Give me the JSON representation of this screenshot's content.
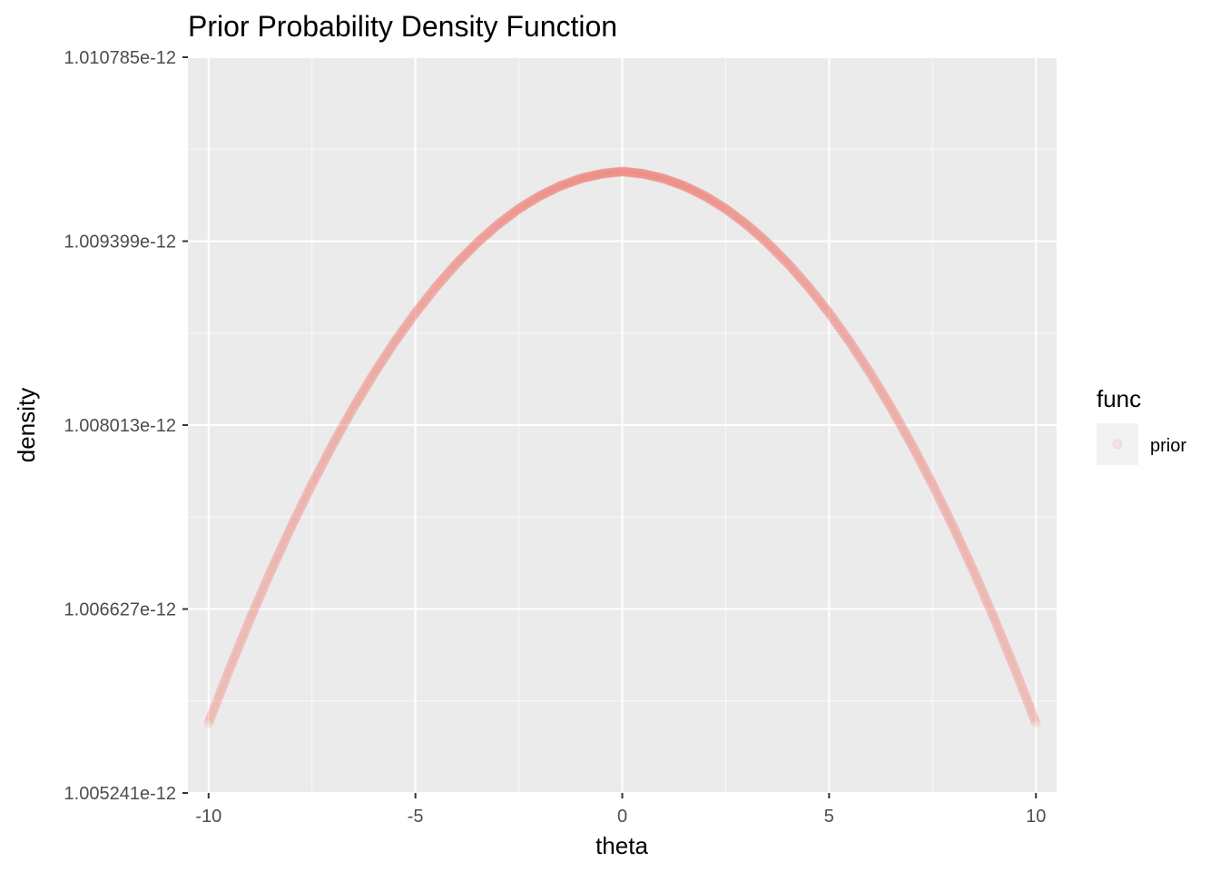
{
  "chart_data": {
    "type": "scatter",
    "title": "Prior Probability Density Function",
    "xlabel": "theta",
    "ylabel": "density",
    "xlim": [
      -10.5,
      10.5
    ],
    "ylim": [
      1.005241e-12,
      1.010785e-12
    ],
    "x_ticks": [
      -10,
      -5,
      0,
      5,
      10
    ],
    "x_tick_labels": [
      "-10",
      "-5",
      "0",
      "5",
      "10"
    ],
    "y_ticks": [
      1.005241e-12,
      1.006627e-12,
      1.008013e-12,
      1.009399e-12,
      1.010785e-12
    ],
    "y_tick_labels": [
      "1.005241e-12",
      "1.006627e-12",
      "1.008013e-12",
      "1.009399e-12",
      "1.010785e-12"
    ],
    "grid": true,
    "legend": {
      "title": "func",
      "position": "right",
      "entries": [
        "prior"
      ]
    },
    "series": [
      {
        "name": "prior",
        "color": "#F8766D",
        "x": [
          -10,
          -9.5,
          -9,
          -8.5,
          -8,
          -7.5,
          -7,
          -6.5,
          -6,
          -5.5,
          -5,
          -4.5,
          -4,
          -3.5,
          -3,
          -2.5,
          -2,
          -1.5,
          -1,
          -0.5,
          0,
          0.5,
          1,
          1.5,
          2,
          2.5,
          3,
          3.5,
          4,
          4.5,
          5,
          5.5,
          6,
          6.5,
          7,
          7.5,
          8,
          8.5,
          9,
          9.5,
          10
        ],
        "y": [
          1.005769e-12,
          1.006169e-12,
          1.006549e-12,
          1.006909e-12,
          1.007248e-12,
          1.007567e-12,
          1.007865e-12,
          1.008144e-12,
          1.008402e-12,
          1.00864e-12,
          1.008858e-12,
          1.009055e-12,
          1.009232e-12,
          1.009389e-12,
          1.009526e-12,
          1.009643e-12,
          1.009739e-12,
          1.009815e-12,
          1.009871e-12,
          1.009907e-12,
          1.009924e-12,
          1.009907e-12,
          1.009871e-12,
          1.009815e-12,
          1.009739e-12,
          1.009643e-12,
          1.009526e-12,
          1.009389e-12,
          1.009232e-12,
          1.009055e-12,
          1.008858e-12,
          1.00864e-12,
          1.008402e-12,
          1.008144e-12,
          1.007865e-12,
          1.007567e-12,
          1.007248e-12,
          1.006909e-12,
          1.006549e-12,
          1.006169e-12,
          1.005769e-12
        ]
      }
    ]
  }
}
